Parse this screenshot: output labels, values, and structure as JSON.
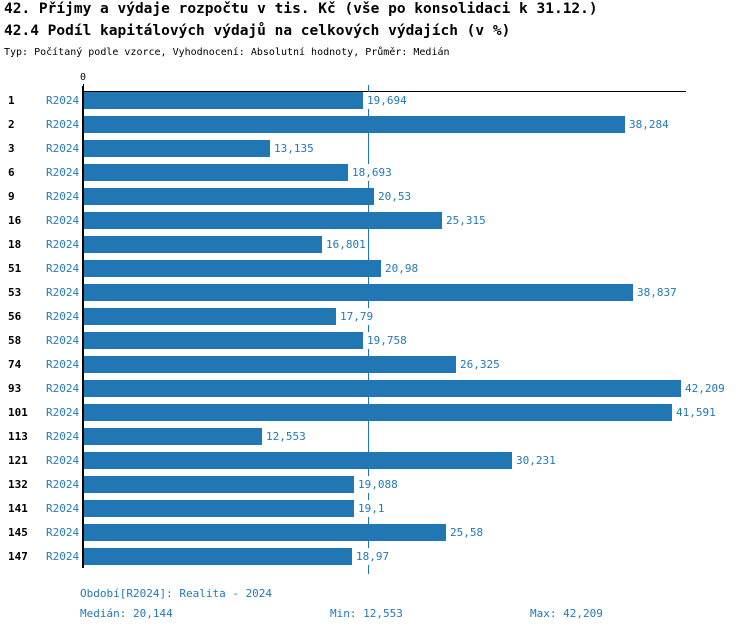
{
  "chart_data": {
    "type": "bar",
    "orientation": "horizontal",
    "title": "42. Příjmy a výdaje rozpočtu v tis. Kč (vše po konsolidaci k 31.12.)",
    "subtitle": "42.4 Podíl kapitálových výdajů na celkových výdajích (v %)",
    "meta": "Typ: Počítaný podle vzorce, Vyhodnocení: Absolutní hodnoty, Průměr: Medián",
    "series_label": "R2024",
    "categories": [
      "1",
      "2",
      "3",
      "6",
      "9",
      "16",
      "18",
      "51",
      "53",
      "56",
      "58",
      "74",
      "93",
      "101",
      "113",
      "121",
      "132",
      "141",
      "145",
      "147"
    ],
    "values": [
      19.694,
      38.284,
      13.135,
      18.693,
      20.53,
      25.315,
      16.801,
      20.98,
      38.837,
      17.79,
      19.758,
      26.325,
      42.209,
      41.591,
      12.553,
      30.231,
      19.088,
      19.1,
      25.58,
      18.97
    ],
    "value_labels": [
      "19,694",
      "38,284",
      "13,135",
      "18,693",
      "20,53",
      "25,315",
      "16,801",
      "20,98",
      "38,837",
      "17,79",
      "19,758",
      "26,325",
      "42,209",
      "41,591",
      "12,553",
      "30,231",
      "19,088",
      "19,1",
      "25,58",
      "18,97"
    ],
    "x_axis": {
      "zero_label": "0"
    },
    "xlim": [
      0,
      42.209
    ],
    "median_value": 20.144,
    "grid": "median-line-only",
    "legend_position": "none",
    "bar_color": "#2077b4",
    "label_color": "#2279b5",
    "median_line_color": "#2077b4"
  },
  "footer": {
    "period": "Období[R2024]: Realita - 2024",
    "median": "Medián: 20,144",
    "min": "Min: 12,553",
    "max": "Max: 42,209"
  }
}
